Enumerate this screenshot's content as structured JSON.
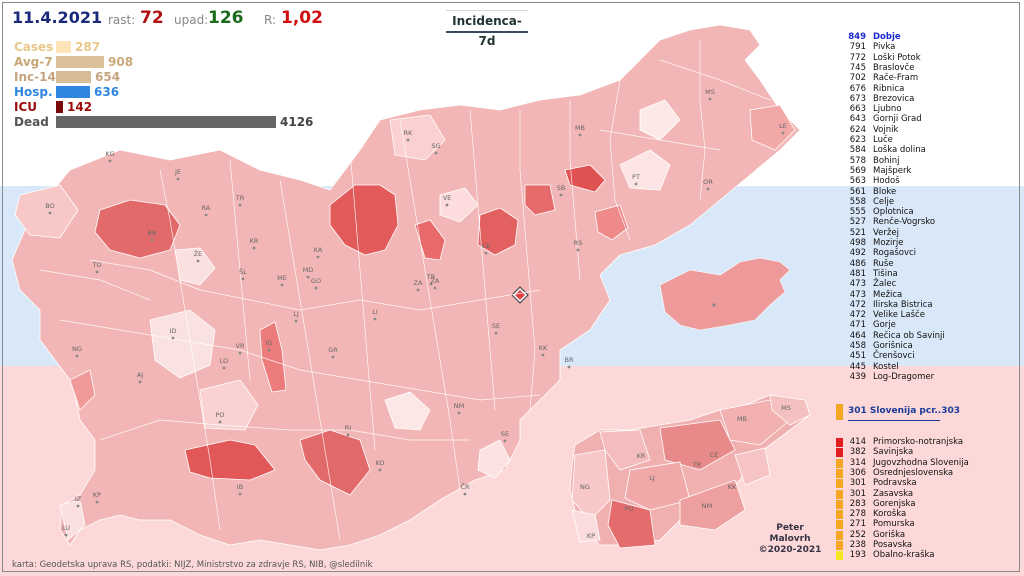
{
  "header": {
    "date": "11.4.2021",
    "rast_label": "rast:",
    "rast_value": "72",
    "upad_label": "upad:",
    "upad_value": "126",
    "r_label": "R:",
    "r_value": "1,02",
    "title": "Incidenca-7d"
  },
  "stats": [
    {
      "label": "Cases",
      "value": "287",
      "fraction": 0.07,
      "color": "#fde3b8",
      "label_color": "#e8c88a",
      "value_color": "#e8c88a"
    },
    {
      "label": "Avg-7",
      "value": "908",
      "fraction": 0.22,
      "color": "#dcc09a",
      "label_color": "#c8a878",
      "value_color": "#c8a878"
    },
    {
      "label": "Inc-14",
      "value": "654",
      "fraction": 0.158,
      "color": "#d8bc98",
      "label_color": "#c4a47e",
      "value_color": "#c4a47e"
    },
    {
      "label": "Hosp.",
      "value": "636",
      "fraction": 0.154,
      "color": "#2f86e0",
      "label_color": "#2f86e0",
      "value_color": "#2f86e0"
    },
    {
      "label": "ICU",
      "value": "142",
      "fraction": 0.034,
      "color": "#7a0a0a",
      "label_color": "#9a0a0a",
      "value_color": "#9a0a0a"
    },
    {
      "label": "Dead",
      "value": "4126",
      "fraction": 1.0,
      "color": "#666666",
      "label_color": "#555555",
      "value_color": "#444444"
    }
  ],
  "top_municipalities": [
    {
      "value": "849",
      "name": "Dobje",
      "highlight": true
    },
    {
      "value": "791",
      "name": "Pivka"
    },
    {
      "value": "772",
      "name": "Loški Potok"
    },
    {
      "value": "745",
      "name": "Braslovče"
    },
    {
      "value": "702",
      "name": "Rače-Fram"
    },
    {
      "value": "676",
      "name": "Ribnica"
    },
    {
      "value": "673",
      "name": "Brezovica"
    },
    {
      "value": "663",
      "name": "Ljubno"
    },
    {
      "value": "643",
      "name": "Gornji Grad"
    },
    {
      "value": "624",
      "name": "Vojnik"
    },
    {
      "value": "623",
      "name": "Luče"
    },
    {
      "value": "584",
      "name": "Loška dolina"
    },
    {
      "value": "578",
      "name": "Bohinj"
    },
    {
      "value": "569",
      "name": "Majšperk"
    },
    {
      "value": "563",
      "name": "Hodoš"
    },
    {
      "value": "561",
      "name": "Bloke"
    },
    {
      "value": "558",
      "name": "Celje"
    },
    {
      "value": "555",
      "name": "Oplotnica"
    },
    {
      "value": "527",
      "name": "Renče-Vogrsko"
    },
    {
      "value": "521",
      "name": "Veržej"
    },
    {
      "value": "498",
      "name": "Mozirje"
    },
    {
      "value": "492",
      "name": "Rogašovci"
    },
    {
      "value": "486",
      "name": "Ruše"
    },
    {
      "value": "481",
      "name": "Tišina"
    },
    {
      "value": "473",
      "name": "Žalec"
    },
    {
      "value": "473",
      "name": "Mežica"
    },
    {
      "value": "472",
      "name": "Ilirska Bistrica"
    },
    {
      "value": "472",
      "name": "Velike Lašče"
    },
    {
      "value": "471",
      "name": "Gorje"
    },
    {
      "value": "464",
      "name": "Rečica ob Savinji"
    },
    {
      "value": "458",
      "name": "Gorišnica"
    },
    {
      "value": "451",
      "name": "Črenšovci"
    },
    {
      "value": "445",
      "name": "Kostel"
    },
    {
      "value": "439",
      "name": "Log-Dragomer"
    }
  ],
  "slovenia_line": "301  Slovenija  pcr..303",
  "regions": [
    {
      "value": "414",
      "name": "Primorsko-notranjska",
      "color": "#e02020"
    },
    {
      "value": "382",
      "name": "Savinjska",
      "color": "#e02020"
    },
    {
      "value": "314",
      "name": "Jugovzhodna Slovenija",
      "color": "#f5a623"
    },
    {
      "value": "306",
      "name": "Osrednjeslovenska",
      "color": "#f5a623"
    },
    {
      "value": "301",
      "name": "Podravska",
      "color": "#f5a623"
    },
    {
      "value": "301",
      "name": "Zasavska",
      "color": "#f5a623"
    },
    {
      "value": "283",
      "name": "Gorenjska",
      "color": "#f5a623"
    },
    {
      "value": "278",
      "name": "Koroška",
      "color": "#f5a623"
    },
    {
      "value": "271",
      "name": "Pomurska",
      "color": "#f5a623"
    },
    {
      "value": "252",
      "name": "Goriška",
      "color": "#f5a623"
    },
    {
      "value": "238",
      "name": "Posavska",
      "color": "#f5a623"
    },
    {
      "value": "193",
      "name": "Obalno-kraška",
      "color": "#f5e623"
    }
  ],
  "map_labels": [
    "KG",
    "JE",
    "RA",
    "BO",
    "TR",
    "BB",
    "ŽE",
    "KR",
    "KA",
    "TO",
    "ŠL",
    "ME",
    "MD",
    "GO",
    "LJ",
    "ZA",
    "TR",
    "LI",
    "ID",
    "VR",
    "IG",
    "GR",
    "SE",
    "NG",
    "AJ",
    "LO",
    "KK",
    "BR",
    "PO",
    "KO",
    "RI",
    "NM",
    "SE",
    "IB",
    "ČR",
    "IZ",
    "KP",
    "LU",
    "RK",
    "SG",
    "MB",
    "MS",
    "LE",
    "VE",
    "SB",
    "PT",
    "OR",
    "CE",
    "RS",
    "ŽA"
  ],
  "region_labels": [
    "MS",
    "MB",
    "KR",
    "CE",
    "TR",
    "LJ",
    "NG",
    "KK",
    "PO",
    "NM",
    "KP"
  ],
  "author": [
    "Peter",
    "Malovrh",
    "©2020-2021"
  ],
  "credits": "karta: Geodetska uprava RS,  podatki: NIJZ, Ministrstvo za zdravje RS, NIB, @sledilnik"
}
